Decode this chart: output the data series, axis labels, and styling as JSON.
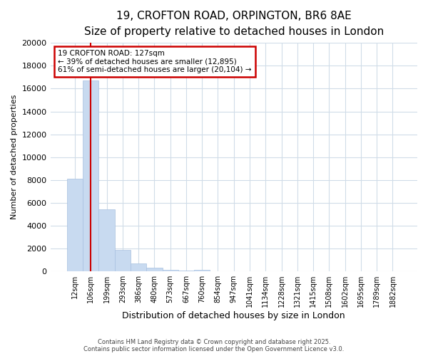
{
  "title_line1": "19, CROFTON ROAD, ORPINGTON, BR6 8AE",
  "title_line2": "Size of property relative to detached houses in London",
  "xlabel": "Distribution of detached houses by size in London",
  "ylabel": "Number of detached properties",
  "categories": [
    "12sqm",
    "106sqm",
    "199sqm",
    "293sqm",
    "386sqm",
    "480sqm",
    "573sqm",
    "667sqm",
    "760sqm",
    "854sqm",
    "947sqm",
    "1041sqm",
    "1134sqm",
    "1228sqm",
    "1321sqm",
    "1415sqm",
    "1508sqm",
    "1602sqm",
    "1695sqm",
    "1789sqm",
    "1882sqm"
  ],
  "values": [
    8100,
    16700,
    5400,
    1850,
    720,
    310,
    160,
    90,
    130,
    0,
    0,
    0,
    0,
    0,
    0,
    0,
    0,
    0,
    0,
    0,
    0
  ],
  "bar_color": "#c8daf0",
  "bar_edge_color": "#a8c0e0",
  "red_line_x": 1.5,
  "annotation_text": "19 CROFTON ROAD: 127sqm\n← 39% of detached houses are smaller (12,895)\n61% of semi-detached houses are larger (20,104) →",
  "annotation_box_color": "#ffffff",
  "annotation_box_edge": "#cc0000",
  "red_line_color": "#cc0000",
  "ylim": [
    0,
    20000
  ],
  "yticks": [
    0,
    2000,
    4000,
    6000,
    8000,
    10000,
    12000,
    14000,
    16000,
    18000,
    20000
  ],
  "footer_line1": "Contains HM Land Registry data © Crown copyright and database right 2025.",
  "footer_line2": "Contains public sector information licensed under the Open Government Licence v3.0.",
  "background_color": "#ffffff",
  "plot_bg_color": "#ffffff",
  "grid_color": "#d0dce8",
  "title_fontsize": 11,
  "subtitle_fontsize": 9.5,
  "ylabel_fontsize": 8,
  "xlabel_fontsize": 9
}
